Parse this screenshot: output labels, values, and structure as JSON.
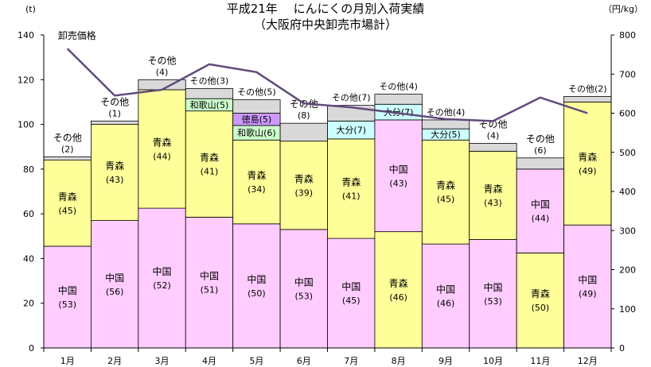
{
  "chart_data": {
    "type": "bar",
    "title": "平成21年　 にんにくの月別入荷実績",
    "subtitle": "（大阪府中央卸売市場計）",
    "yunit_left": "(t)",
    "yunit_right": "（円/kg）",
    "ylim": [
      0,
      140
    ],
    "y2lim": [
      0,
      800
    ],
    "yticks": [
      0,
      20,
      40,
      60,
      80,
      100,
      120,
      140
    ],
    "y2ticks": [
      0,
      100,
      200,
      300,
      400,
      500,
      600,
      700,
      800
    ],
    "categories": [
      "1月",
      "2月",
      "3月",
      "4月",
      "5月",
      "6月",
      "7月",
      "8月",
      "9月",
      "10月",
      "11月",
      "12月"
    ],
    "stacks": [
      [
        {
          "origin": "中国",
          "value": 45.5,
          "color": "#FFCCFF",
          "pct": "(53)"
        },
        {
          "origin": "青森",
          "value": 38.5,
          "color": "#FFFF99",
          "pct": "(45)"
        },
        {
          "origin": "その他",
          "value": 1.5,
          "color": "#D9D9D9",
          "pct": "(2)"
        }
      ],
      [
        {
          "origin": "中国",
          "value": 57,
          "color": "#FFCCFF",
          "pct": "(56)"
        },
        {
          "origin": "青森",
          "value": 43,
          "color": "#FFFF99",
          "pct": "(43)"
        },
        {
          "origin": "その他",
          "value": 1.5,
          "color": "#D9D9D9",
          "pct": "(1)"
        }
      ],
      [
        {
          "origin": "中国",
          "value": 62.5,
          "color": "#FFCCFF",
          "pct": "(52)"
        },
        {
          "origin": "青森",
          "value": 53,
          "color": "#FFFF99",
          "pct": "(44)"
        },
        {
          "origin": "その他",
          "value": 4.5,
          "color": "#D9D9D9",
          "pct": "(4)"
        }
      ],
      [
        {
          "origin": "中国",
          "value": 58.5,
          "color": "#FFCCFF",
          "pct": "(51)"
        },
        {
          "origin": "青森",
          "value": 47.5,
          "color": "#FFFF99",
          "pct": "(41)"
        },
        {
          "origin": "和歌山",
          "value": 5.5,
          "color": "#CCFFCC",
          "pct": "(5)"
        },
        {
          "origin": "その他",
          "value": 4.5,
          "color": "#D9D9D9",
          "pct": "(3)"
        }
      ],
      [
        {
          "origin": "中国",
          "value": 55.5,
          "color": "#FFCCFF",
          "pct": "(50)"
        },
        {
          "origin": "青森",
          "value": 37.5,
          "color": "#FFFF99",
          "pct": "(34)"
        },
        {
          "origin": "和歌山",
          "value": 6.5,
          "color": "#CCFFCC",
          "pct": "(6)"
        },
        {
          "origin": "徳島",
          "value": 5.5,
          "color": "#CC99FF",
          "pct": "(5)"
        },
        {
          "origin": "その他",
          "value": 6,
          "color": "#D9D9D9",
          "pct": "(5)"
        }
      ],
      [
        {
          "origin": "中国",
          "value": 53,
          "color": "#FFCCFF",
          "pct": "(53)"
        },
        {
          "origin": "青森",
          "value": 39.5,
          "color": "#FFFF99",
          "pct": "(39)"
        },
        {
          "origin": "その他",
          "value": 8,
          "color": "#D9D9D9",
          "pct": "(8)"
        }
      ],
      [
        {
          "origin": "中国",
          "value": 49,
          "color": "#FFCCFF",
          "pct": "(45)"
        },
        {
          "origin": "青森",
          "value": 44.5,
          "color": "#FFFF99",
          "pct": "(41)"
        },
        {
          "origin": "大分",
          "value": 8,
          "color": "#CCFFFF",
          "pct": "(7)"
        },
        {
          "origin": "その他",
          "value": 7,
          "color": "#D9D9D9",
          "pct": "(7)"
        }
      ],
      [
        {
          "origin": "青森",
          "value": 52,
          "color": "#FFFF99",
          "pct": "(46)"
        },
        {
          "origin": "中国",
          "value": 50,
          "color": "#FFCCFF",
          "pct": "(43)"
        },
        {
          "origin": "大分",
          "value": 7,
          "color": "#CCFFFF",
          "pct": "(7)"
        },
        {
          "origin": "その他",
          "value": 4.5,
          "color": "#D9D9D9",
          "pct": "(4)"
        }
      ],
      [
        {
          "origin": "中国",
          "value": 46.5,
          "color": "#FFCCFF",
          "pct": "(46)"
        },
        {
          "origin": "青森",
          "value": 46.5,
          "color": "#FFFF99",
          "pct": "(45)"
        },
        {
          "origin": "大分",
          "value": 5,
          "color": "#CCFFFF",
          "pct": "(5)"
        },
        {
          "origin": "その他",
          "value": 4,
          "color": "#D9D9D9",
          "pct": "(4)"
        }
      ],
      [
        {
          "origin": "中国",
          "value": 48.5,
          "color": "#FFCCFF",
          "pct": "(53)"
        },
        {
          "origin": "青森",
          "value": 39.5,
          "color": "#FFFF99",
          "pct": "(43)"
        },
        {
          "origin": "その他",
          "value": 3.5,
          "color": "#D9D9D9",
          "pct": "(4)"
        }
      ],
      [
        {
          "origin": "青森",
          "value": 42.5,
          "color": "#FFFF99",
          "pct": "(50)"
        },
        {
          "origin": "中国",
          "value": 37.5,
          "color": "#FFCCFF",
          "pct": "(44)"
        },
        {
          "origin": "その他",
          "value": 5,
          "color": "#D9D9D9",
          "pct": "(6)"
        }
      ],
      [
        {
          "origin": "中国",
          "value": 55,
          "color": "#FFCCFF",
          "pct": "(49)"
        },
        {
          "origin": "青森",
          "value": 55,
          "color": "#FFFF99",
          "pct": "(49)"
        },
        {
          "origin": "その他",
          "value": 2.5,
          "color": "#D9D9D9",
          "pct": "(2)"
        }
      ]
    ],
    "price_series": {
      "name": "卸売価格",
      "axis": "right",
      "color": "#604A7B",
      "values": [
        765,
        645,
        660,
        725,
        705,
        625,
        615,
        600,
        585,
        580,
        640,
        600
      ]
    }
  }
}
